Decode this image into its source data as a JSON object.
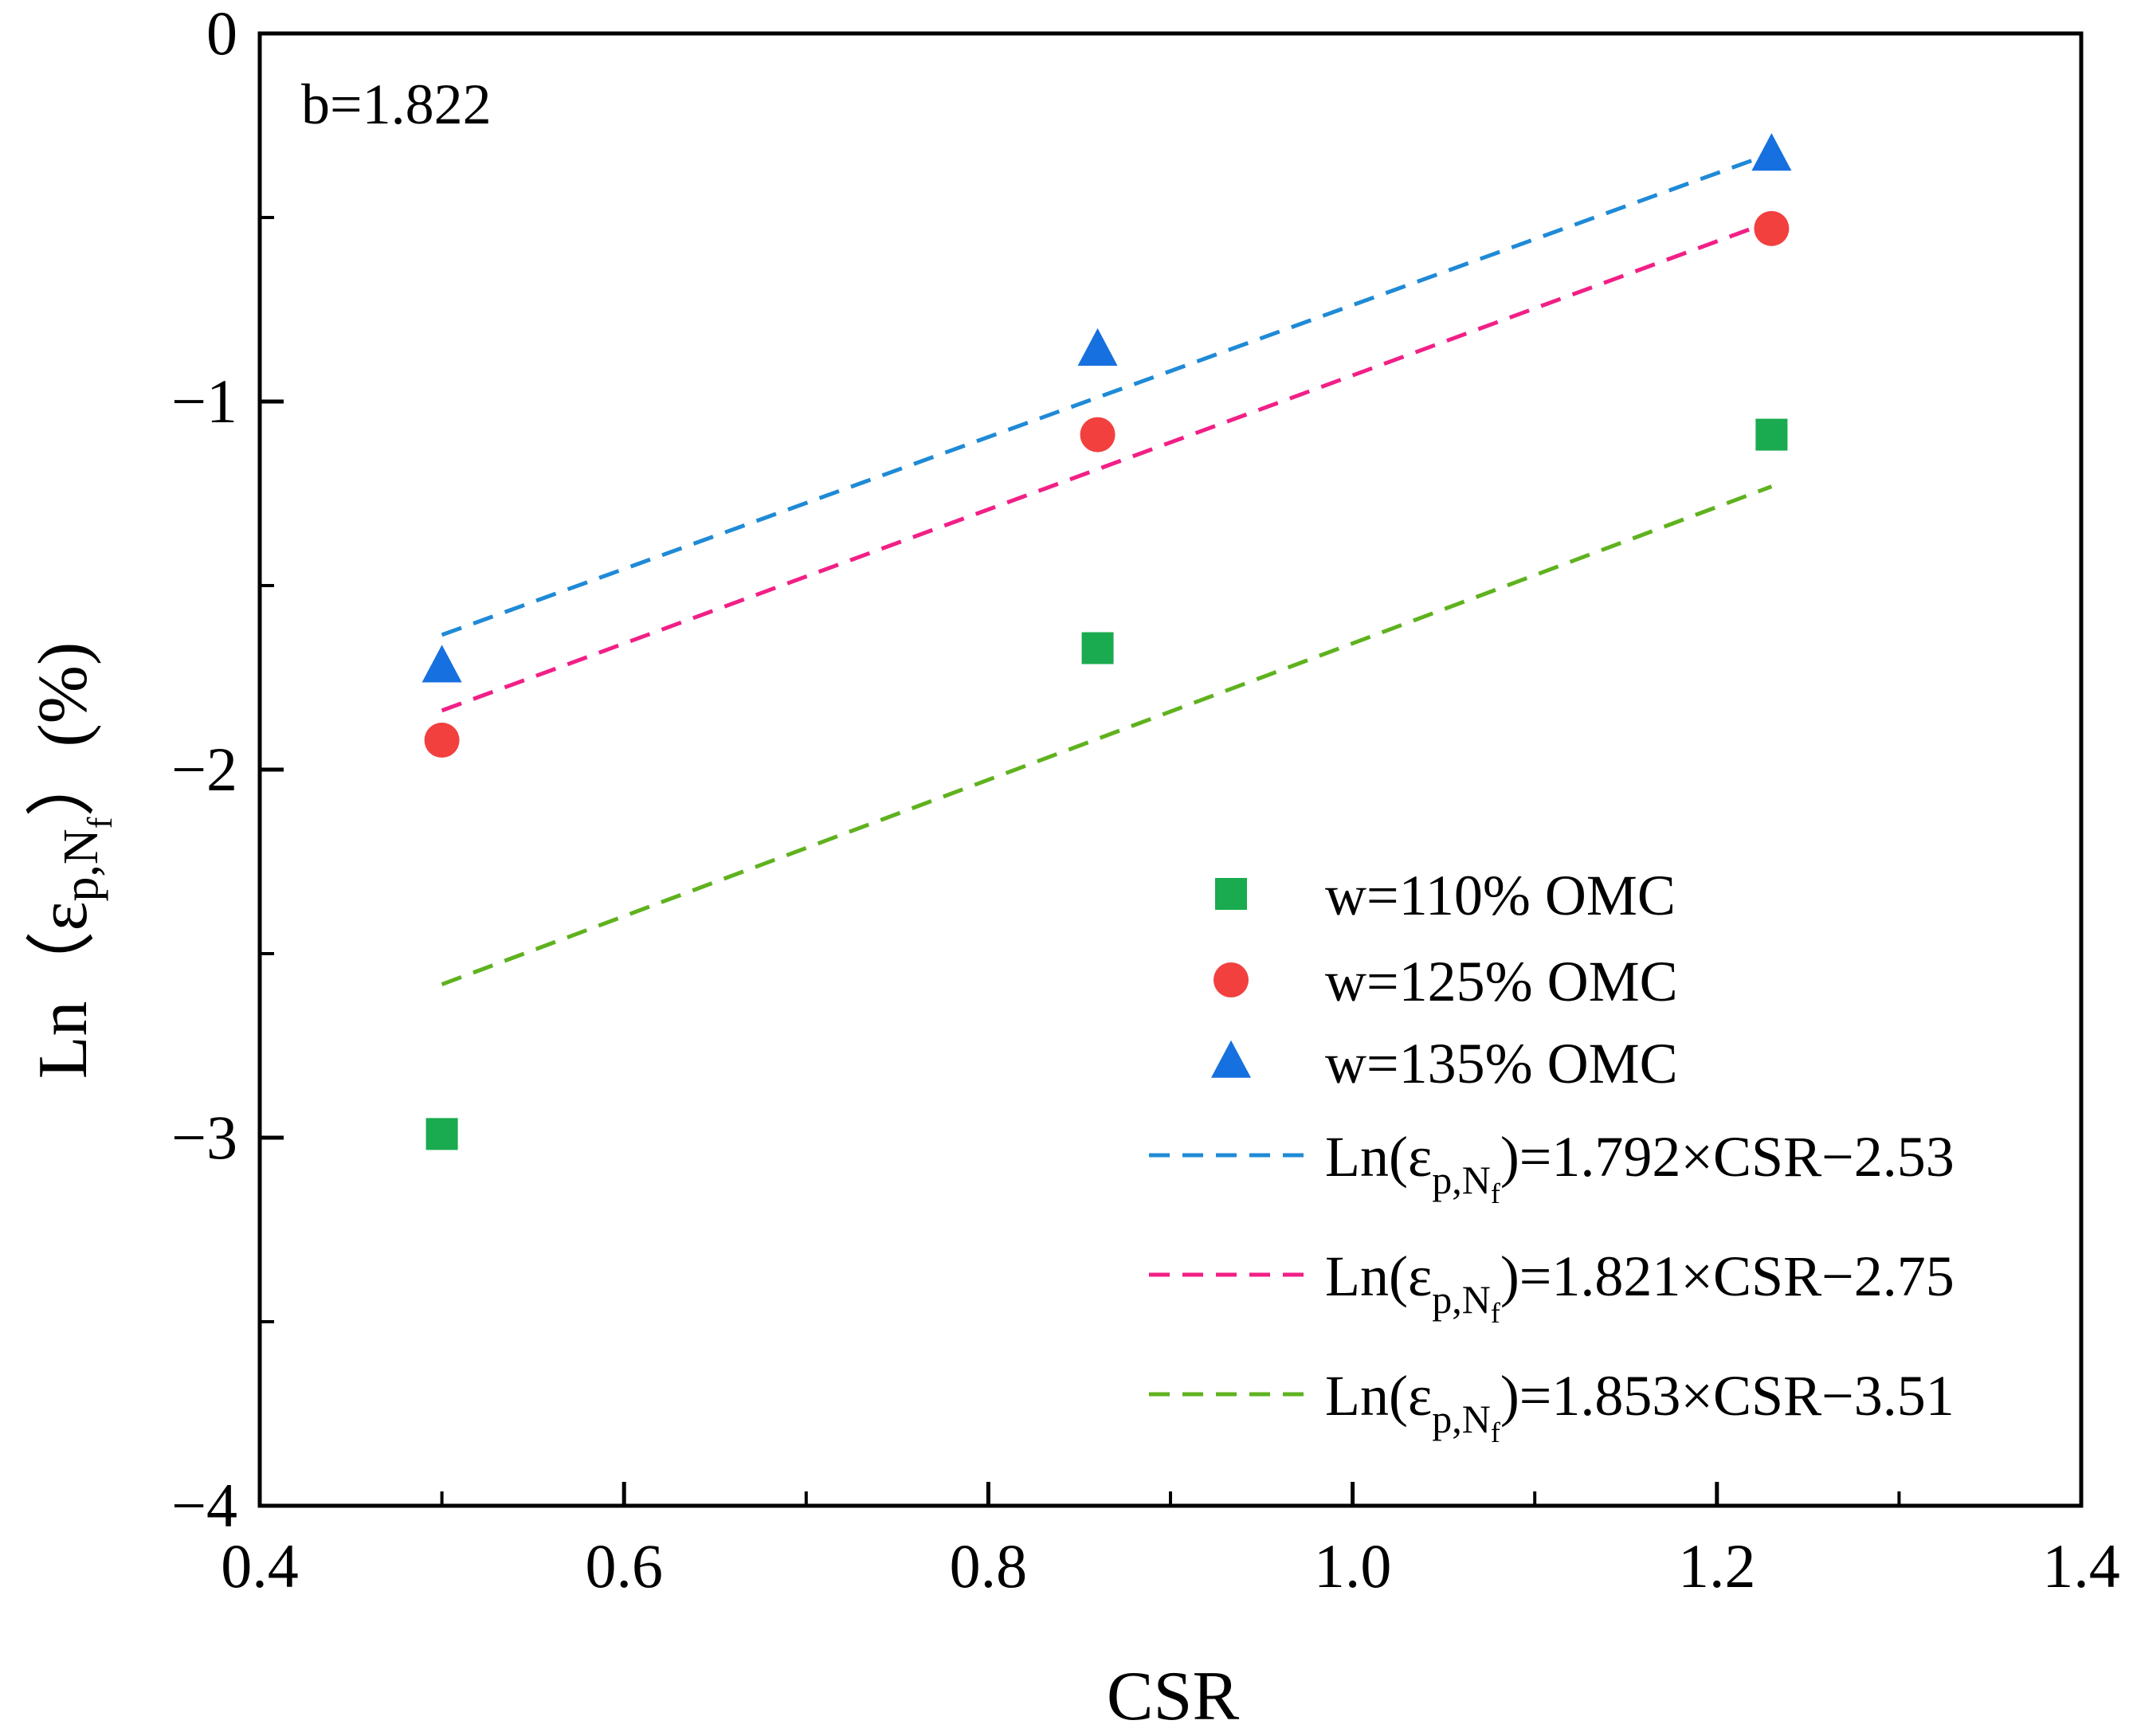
{
  "chart_data": {
    "type": "scatter",
    "xlabel": "CSR",
    "ylabel": {
      "prefix": "Ln（ε",
      "sub": "p,N",
      "subsub": "f",
      "suffix": "）(%)"
    },
    "annotation": "b=1.822",
    "xlim": [
      0.4,
      1.4
    ],
    "ylim": [
      -4,
      0
    ],
    "xticks": [
      0.4,
      0.6,
      0.8,
      1.0,
      1.2,
      1.4
    ],
    "xtick_labels": [
      "0.4",
      "0.6",
      "0.8",
      "1.0",
      "1.2",
      "1.4"
    ],
    "yticks": [
      -4,
      -3,
      -2,
      -1,
      0
    ],
    "ytick_labels": [
      "−4",
      "−3",
      "−2",
      "−1",
      "0"
    ],
    "grid": false,
    "legend_position": "bottom-right",
    "series": [
      {
        "name": "w=110% OMC",
        "marker": "square",
        "color": "#1aaa4f",
        "x": [
          0.5,
          0.86,
          1.23
        ],
        "y": [
          -2.99,
          -1.67,
          -1.09
        ]
      },
      {
        "name": "w=125% OMC",
        "marker": "circle",
        "color": "#f2403f",
        "x": [
          0.5,
          0.86,
          1.23
        ],
        "y": [
          -1.92,
          -1.09,
          -0.53
        ]
      },
      {
        "name": "w=135% OMC",
        "marker": "triangle",
        "color": "#1670df",
        "x": [
          0.5,
          0.86,
          1.23
        ],
        "y": [
          -1.72,
          -0.86,
          -0.33
        ]
      }
    ],
    "fits": [
      {
        "label": {
          "prefix": "Ln(ε",
          "sub": "p,N",
          "subsub": "f",
          "suffix": ")=1.792×CSR−2.53"
        },
        "color": "#1f8ad6",
        "slope": 1.792,
        "intercept": -2.53,
        "x_range": [
          0.5,
          1.23
        ]
      },
      {
        "label": {
          "prefix": "Ln(ε",
          "sub": "p,N",
          "subsub": "f",
          "suffix": ")=1.821×CSR−2.75"
        },
        "color": "#f21f86",
        "slope": 1.821,
        "intercept": -2.75,
        "x_range": [
          0.5,
          1.23
        ]
      },
      {
        "label": {
          "prefix": "Ln(ε",
          "sub": "p,N",
          "subsub": "f",
          "suffix": ")=1.853×CSR−3.51"
        },
        "color": "#5fb21e",
        "slope": 1.853,
        "intercept": -3.51,
        "x_range": [
          0.5,
          1.23
        ]
      }
    ]
  }
}
